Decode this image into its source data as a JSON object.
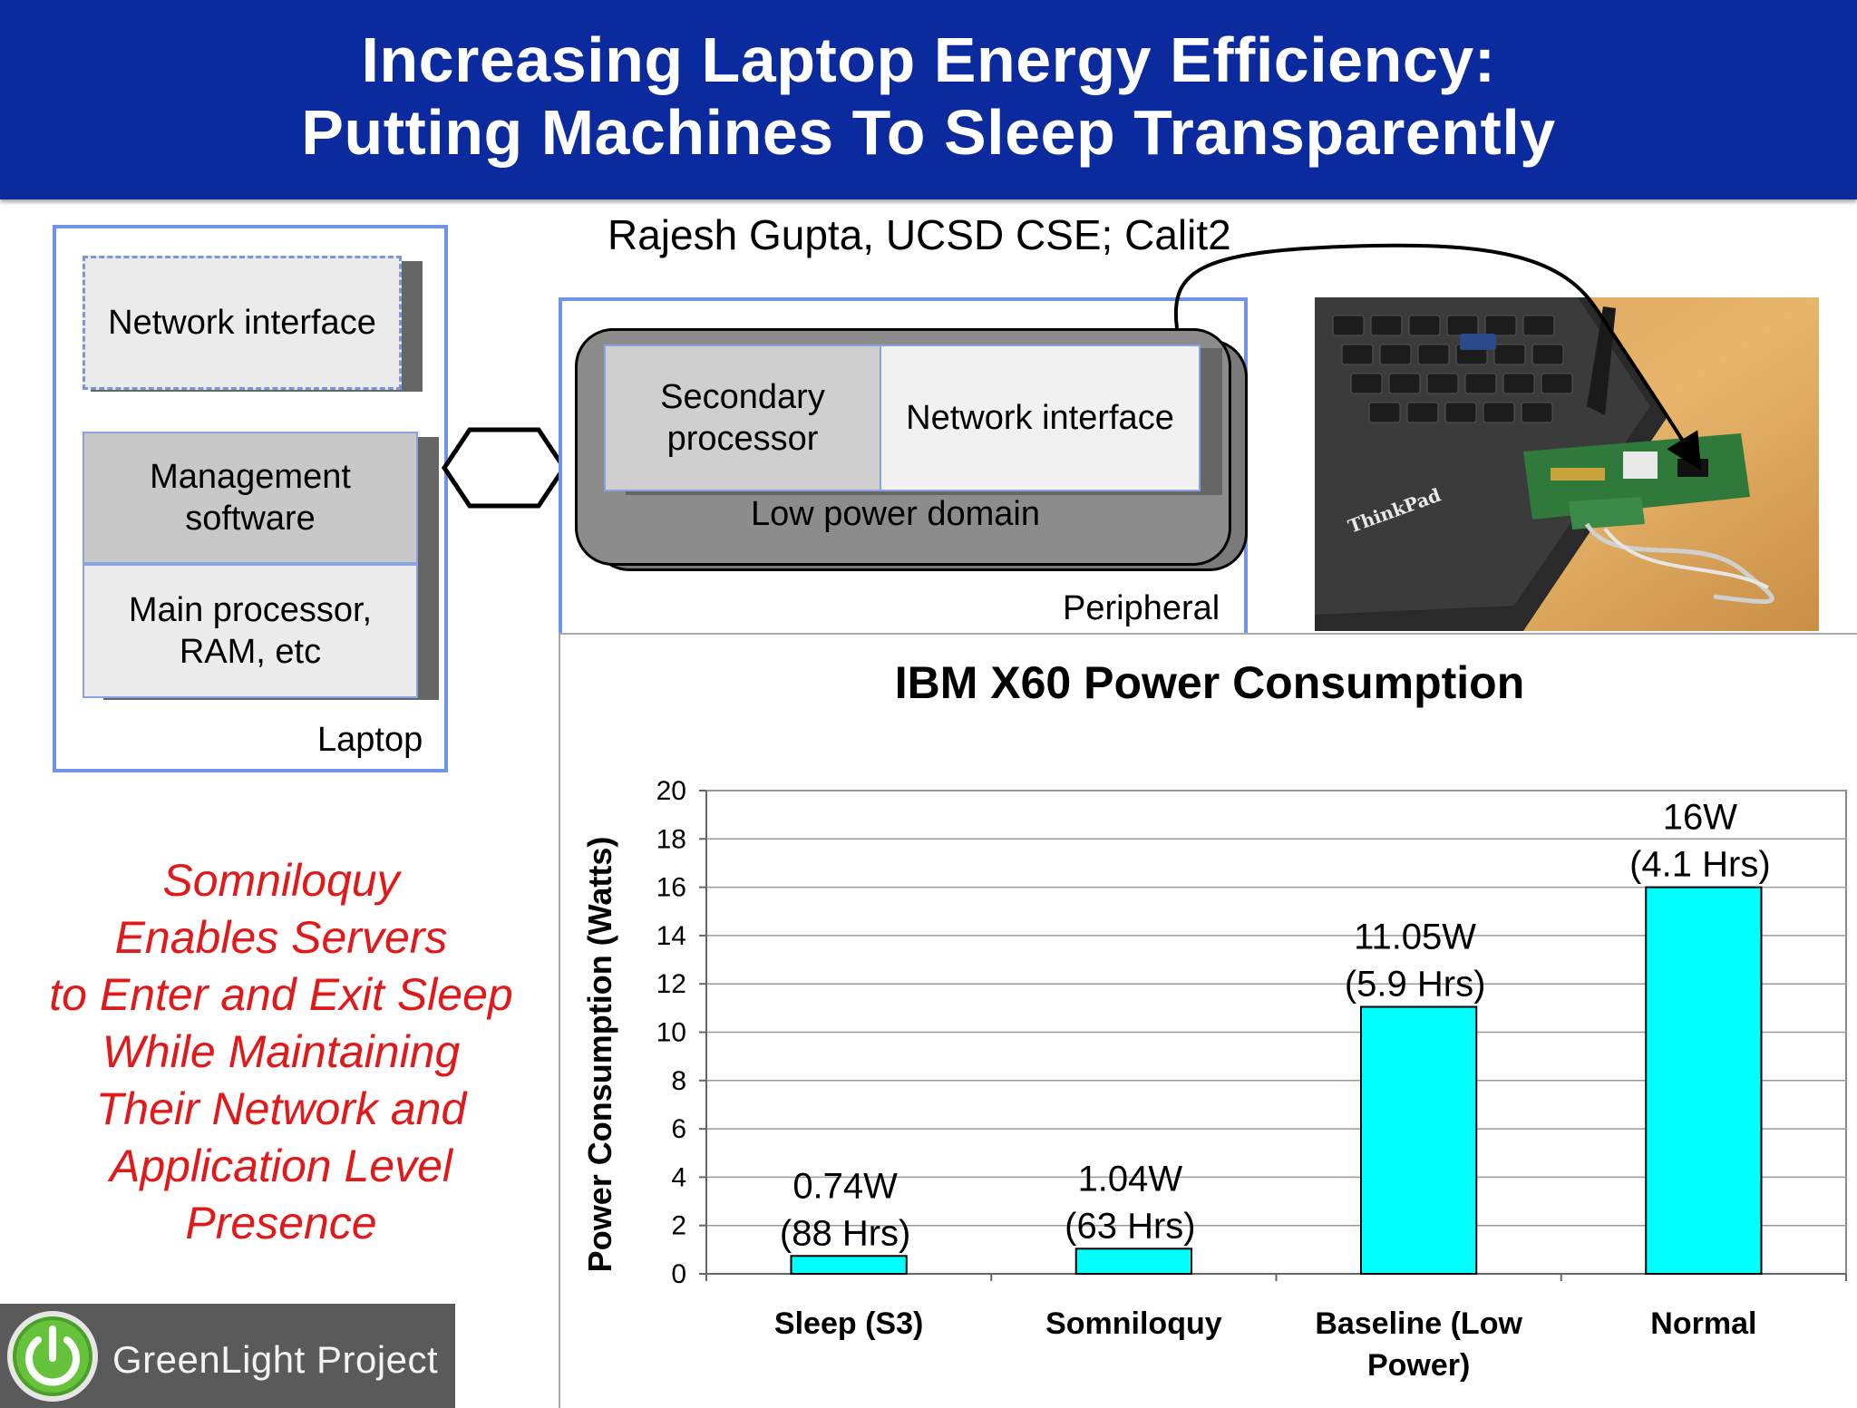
{
  "header": {
    "title_line1": "Increasing Laptop Energy Efficiency:",
    "title_line2": "Putting Machines To Sleep Transparently"
  },
  "author": "Rajesh Gupta, UCSD CSE; Calit2",
  "laptop": {
    "network_interface": "Network interface",
    "management_software": [
      "Management",
      "software"
    ],
    "main_processor": [
      "Main processor,",
      "RAM, etc"
    ],
    "label": "Laptop"
  },
  "peripheral": {
    "secondary_processor": [
      "Secondary",
      "processor"
    ],
    "network_interface": "Network interface",
    "low_power_domain": "Low power domain",
    "label": "Peripheral"
  },
  "photo": {
    "brand_text": "ThinkPad"
  },
  "caption": [
    "Somniloquy",
    "Enables Servers",
    "to Enter and Exit Sleep",
    "While Maintaining",
    "Their Network and",
    "Application Level",
    "Presence"
  ],
  "logo": {
    "text": "GreenLight Project",
    "icon": "power-icon"
  },
  "colors": {
    "header_bg": "#0b2a9e",
    "bar": "#00ffff",
    "caption": "#e0191b",
    "frame": "#6f94e8"
  },
  "chart_data": {
    "type": "bar",
    "title": "IBM X60 Power Consumption",
    "ylabel": "Power Consumption (Watts)",
    "xlabel": "",
    "ylim": [
      0,
      20
    ],
    "yticks": [
      0,
      2,
      4,
      6,
      8,
      10,
      12,
      14,
      16,
      18,
      20
    ],
    "grid": true,
    "categories": [
      [
        "Sleep (S3)"
      ],
      [
        "Somniloquy"
      ],
      [
        "Baseline (Low",
        "Power)"
      ],
      [
        "Normal"
      ]
    ],
    "values": [
      0.74,
      1.04,
      11.05,
      16
    ],
    "data_labels": [
      [
        "0.74W",
        "(88 Hrs)"
      ],
      [
        "1.04W",
        "(63 Hrs)"
      ],
      [
        "11.05W",
        "(5.9 Hrs)"
      ],
      [
        "16W",
        "(4.1 Hrs)"
      ]
    ],
    "bar_color": "#00ffff"
  }
}
